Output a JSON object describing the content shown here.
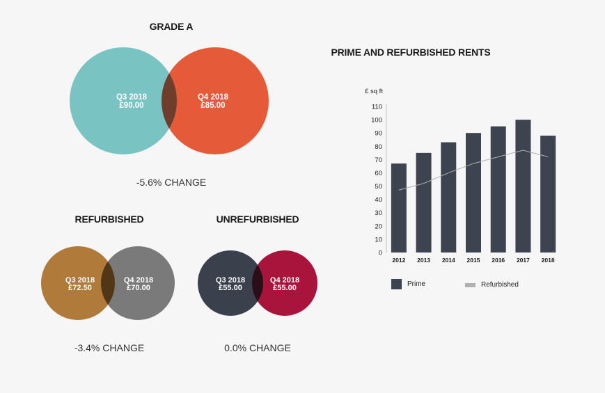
{
  "grade_a": {
    "title": "GRADE A",
    "left": {
      "period": "Q3 2018",
      "value": "£90.00"
    },
    "right": {
      "period": "Q4 2018",
      "value": "£85.00"
    },
    "change": "-5.6% CHANGE",
    "colors": {
      "left": "#79c3c3",
      "right": "#e55a38",
      "overlap": "#6e3d2b"
    }
  },
  "refurbished": {
    "title": "REFURBISHED",
    "left": {
      "period": "Q3 2018",
      "value": "£72.50"
    },
    "right": {
      "period": "Q4 2018",
      "value": "£70.00"
    },
    "change": "-3.4% CHANGE",
    "colors": {
      "left": "#b07a3b",
      "right": "#7a7a7a",
      "overlap": "#513716"
    }
  },
  "unrefurbished": {
    "title": "UNREFURBISHED",
    "left": {
      "period": "Q3 2018",
      "value": "£55.00"
    },
    "right": {
      "period": "Q4 2018",
      "value": "£55.00"
    },
    "change": "0.0% CHANGE",
    "colors": {
      "left": "#3a414c",
      "right": "#a8143c",
      "overlap": "#2a0e18"
    }
  },
  "chart_data": {
    "type": "bar",
    "title": "PRIME AND REFURBISHED RENTS",
    "ylabel": "£ sq ft",
    "xlabel": "",
    "categories": [
      "2012",
      "2013",
      "2014",
      "2015",
      "2016",
      "2017",
      "2018"
    ],
    "ylim": [
      0,
      110
    ],
    "yticks": [
      0,
      10,
      20,
      30,
      40,
      50,
      60,
      70,
      80,
      90,
      100,
      110
    ],
    "series": [
      {
        "name": "Prime",
        "type": "bar",
        "color": "#3d4450",
        "values": [
          67,
          75,
          83,
          90,
          95,
          100,
          88
        ]
      },
      {
        "name": "Refurbished",
        "type": "line",
        "color": "#b0b0b0",
        "values": [
          47,
          52,
          60,
          67,
          72,
          77,
          72
        ]
      }
    ],
    "legend": "bottom"
  }
}
